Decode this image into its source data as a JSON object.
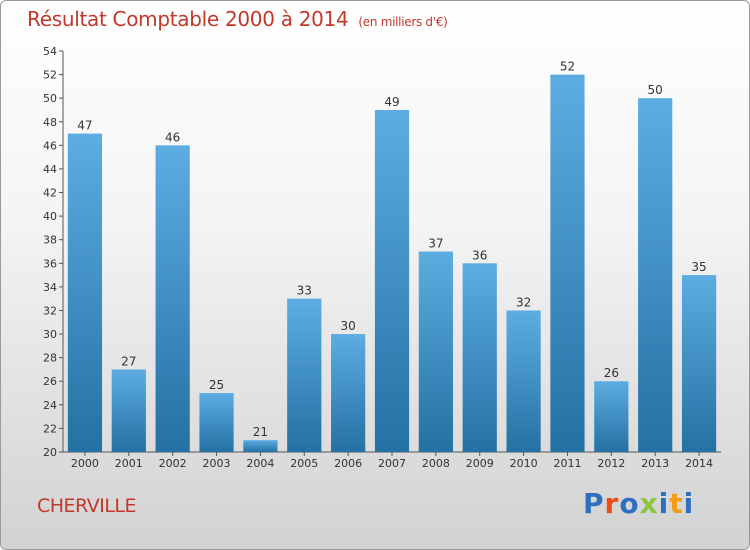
{
  "header": {
    "title": "Résultat Comptable 2000 à 2014",
    "subtitle": "(en milliers d'€)"
  },
  "footer": {
    "city": "CHERVILLE",
    "logo": "Proxiti",
    "logo_colors": [
      "#2f6fbf",
      "#e94e1b",
      "#2f6fbf",
      "#8cc63f",
      "#2f6fbf",
      "#f39c12",
      "#2f6fbf"
    ]
  },
  "colors": {
    "title": "#c0392b",
    "bar_light": "#5dade2",
    "bar_dark": "#2471a3"
  },
  "chart_data": {
    "type": "bar",
    "title": "Résultat Comptable 2000 à 2014",
    "categories": [
      "2000",
      "2001",
      "2002",
      "2003",
      "2004",
      "2005",
      "2006",
      "2007",
      "2008",
      "2009",
      "2010",
      "2011",
      "2012",
      "2013",
      "2014"
    ],
    "values": [
      47,
      27,
      46,
      25,
      21,
      33,
      30,
      49,
      37,
      36,
      32,
      52,
      26,
      50,
      35
    ],
    "ylim": [
      20,
      54
    ],
    "yticks": [
      20,
      22,
      24,
      26,
      28,
      30,
      32,
      34,
      36,
      38,
      40,
      42,
      44,
      46,
      48,
      50,
      52,
      54
    ],
    "xlabel": "",
    "ylabel": "",
    "grid": false
  }
}
